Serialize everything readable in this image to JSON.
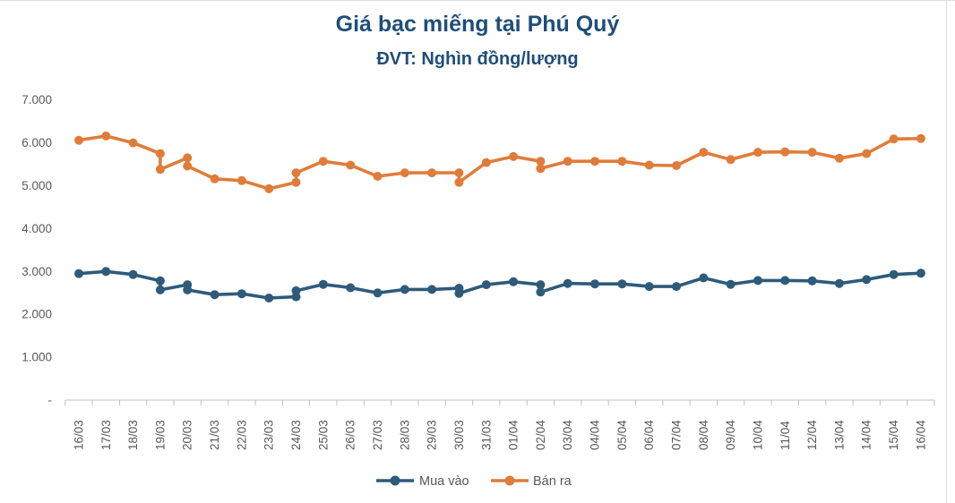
{
  "chart_data": {
    "type": "line",
    "title": "Giá bạc miếng tại Phú Quý",
    "subtitle": "ĐVT: Nghìn đồng/lượng",
    "unit": "Nghìn đồng/lượng",
    "grid": false,
    "legend_position": "bottom",
    "categories": [
      "16/03",
      "17/03",
      "18/03",
      "19/03",
      "20/03",
      "21/03",
      "22/03",
      "23/03",
      "24/03",
      "25/03",
      "26/03",
      "27/03",
      "28/03",
      "29/03",
      "30/03",
      "31/03",
      "01/04",
      "02/04",
      "03/04",
      "04/04",
      "05/04",
      "06/04",
      "07/04",
      "08/04",
      "09/04",
      "10/04",
      "11/04",
      "12/04",
      "13/04",
      "14/04",
      "15/04",
      "16/04"
    ],
    "y_axis": {
      "min": 0,
      "max": 7000,
      "step": 1000,
      "tick_labels": [
        "7.000",
        "6.000",
        "5.000",
        "4.000",
        "3.000",
        "2.000",
        "1.000",
        "-"
      ],
      "tick_values": [
        7000,
        6000,
        5000,
        4000,
        3000,
        2000,
        1000,
        0
      ]
    },
    "series": [
      {
        "name": "Mua vào",
        "color": "#2E5B7A",
        "points": [
          [
            0,
            2950
          ],
          [
            1,
            3000
          ],
          [
            2,
            2930
          ],
          [
            3,
            2780
          ],
          [
            3,
            2570
          ],
          [
            4,
            2690
          ],
          [
            4,
            2570
          ],
          [
            5,
            2460
          ],
          [
            6,
            2480
          ],
          [
            7,
            2380
          ],
          [
            8,
            2410
          ],
          [
            8,
            2550
          ],
          [
            9,
            2700
          ],
          [
            10,
            2620
          ],
          [
            11,
            2500
          ],
          [
            12,
            2580
          ],
          [
            13,
            2580
          ],
          [
            14,
            2610
          ],
          [
            14,
            2490
          ],
          [
            15,
            2690
          ],
          [
            16,
            2760
          ],
          [
            17,
            2690
          ],
          [
            17,
            2520
          ],
          [
            18,
            2720
          ],
          [
            19,
            2710
          ],
          [
            20,
            2710
          ],
          [
            21,
            2650
          ],
          [
            22,
            2650
          ],
          [
            23,
            2850
          ],
          [
            24,
            2700
          ],
          [
            25,
            2790
          ],
          [
            26,
            2790
          ],
          [
            27,
            2780
          ],
          [
            28,
            2720
          ],
          [
            29,
            2810
          ],
          [
            30,
            2930
          ],
          [
            31,
            2960
          ]
        ]
      },
      {
        "name": "Bán ra",
        "color": "#E07C3A",
        "points": [
          [
            0,
            6060
          ],
          [
            1,
            6160
          ],
          [
            2,
            6000
          ],
          [
            3,
            5750
          ],
          [
            3,
            5380
          ],
          [
            4,
            5650
          ],
          [
            4,
            5460
          ],
          [
            5,
            5160
          ],
          [
            6,
            5120
          ],
          [
            7,
            4930
          ],
          [
            8,
            5080
          ],
          [
            8,
            5300
          ],
          [
            9,
            5570
          ],
          [
            10,
            5480
          ],
          [
            11,
            5220
          ],
          [
            12,
            5300
          ],
          [
            13,
            5300
          ],
          [
            14,
            5300
          ],
          [
            14,
            5080
          ],
          [
            15,
            5540
          ],
          [
            16,
            5680
          ],
          [
            17,
            5570
          ],
          [
            17,
            5400
          ],
          [
            18,
            5570
          ],
          [
            19,
            5570
          ],
          [
            20,
            5570
          ],
          [
            21,
            5480
          ],
          [
            22,
            5470
          ],
          [
            23,
            5780
          ],
          [
            24,
            5610
          ],
          [
            25,
            5780
          ],
          [
            26,
            5790
          ],
          [
            27,
            5780
          ],
          [
            28,
            5640
          ],
          [
            29,
            5750
          ],
          [
            30,
            6090
          ],
          [
            31,
            6100
          ]
        ]
      }
    ],
    "colors": {
      "title": "#1F4E79",
      "axis_text": "#595959",
      "axis_line": "#BFBFBF"
    }
  }
}
